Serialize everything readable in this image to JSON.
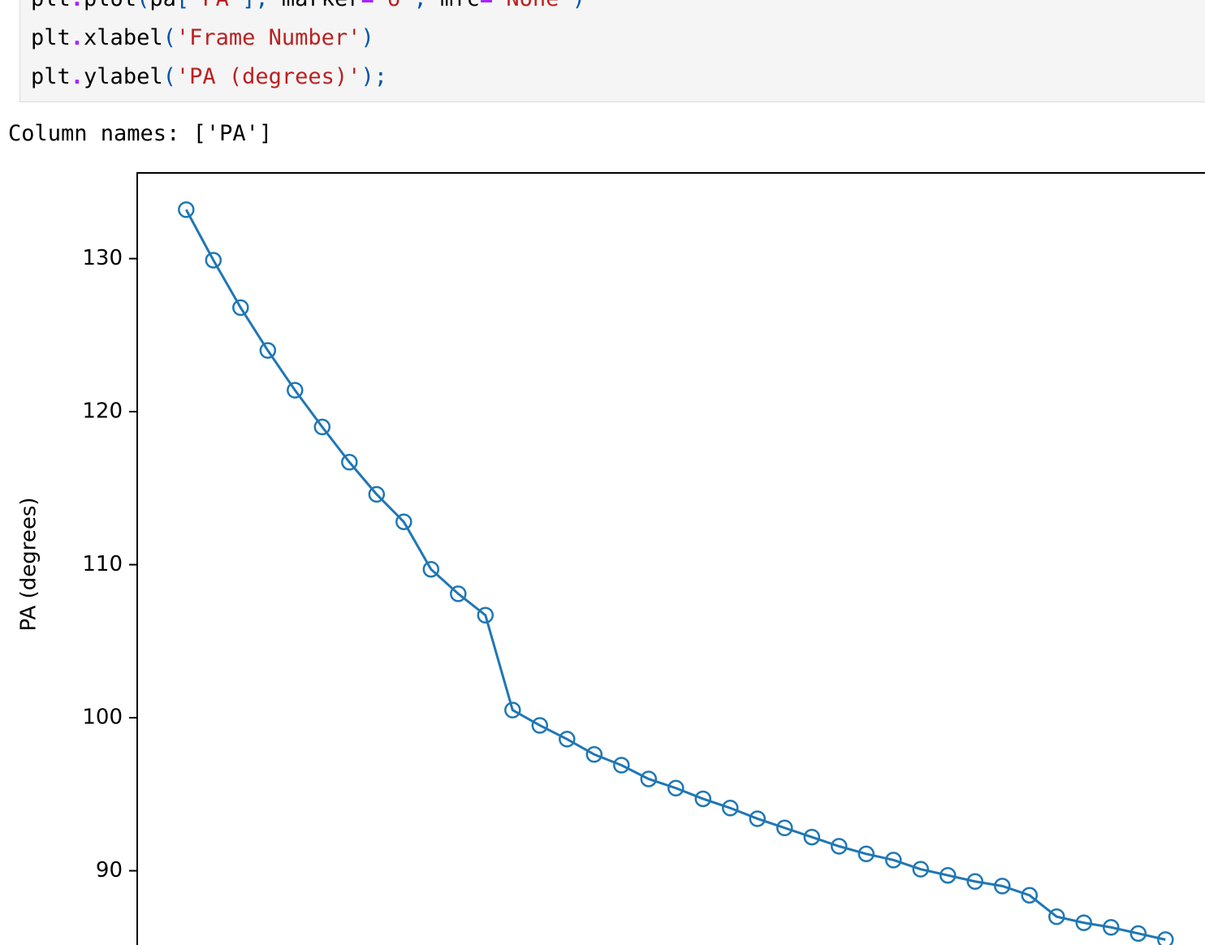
{
  "code": {
    "lines": [
      [
        {
          "text": "plt",
          "color": "#000000"
        },
        {
          "text": ".",
          "color": "#aa22ff"
        },
        {
          "text": "plot",
          "color": "#000000"
        },
        {
          "text": "(",
          "color": "#0055aa"
        },
        {
          "text": "pa",
          "color": "#000000"
        },
        {
          "text": "[",
          "color": "#0055aa"
        },
        {
          "text": "'PA'",
          "color": "#ba2121"
        },
        {
          "text": "],",
          "color": "#0055aa"
        },
        {
          "text": " marker",
          "color": "#000000"
        },
        {
          "text": "=",
          "color": "#aa22ff"
        },
        {
          "text": "'o'",
          "color": "#ba2121"
        },
        {
          "text": ",",
          "color": "#0055aa"
        },
        {
          "text": " mfc",
          "color": "#000000"
        },
        {
          "text": "=",
          "color": "#aa22ff"
        },
        {
          "text": "'None'",
          "color": "#ba2121"
        },
        {
          "text": ")",
          "color": "#0055aa"
        }
      ],
      [
        {
          "text": "plt",
          "color": "#000000"
        },
        {
          "text": ".",
          "color": "#aa22ff"
        },
        {
          "text": "xlabel",
          "color": "#000000"
        },
        {
          "text": "(",
          "color": "#0055aa"
        },
        {
          "text": "'Frame Number'",
          "color": "#ba2121"
        },
        {
          "text": ")",
          "color": "#0055aa"
        }
      ],
      [
        {
          "text": "plt",
          "color": "#000000"
        },
        {
          "text": ".",
          "color": "#aa22ff"
        },
        {
          "text": "ylabel",
          "color": "#000000"
        },
        {
          "text": "(",
          "color": "#0055aa"
        },
        {
          "text": "'PA (degrees)'",
          "color": "#ba2121"
        },
        {
          "text": ");",
          "color": "#0055aa"
        }
      ]
    ]
  },
  "output": {
    "text": "Column names: ['PA']"
  },
  "chart_data": {
    "type": "line",
    "y_label": "PA (degrees)",
    "x": [
      0,
      1,
      2,
      3,
      4,
      5,
      6,
      7,
      8,
      9,
      10,
      11,
      12,
      13,
      14,
      15,
      16,
      17,
      18,
      19,
      20,
      21,
      22,
      23,
      24,
      25,
      26,
      27,
      28,
      29,
      30,
      31,
      32,
      33,
      34,
      35,
      36
    ],
    "series": [
      {
        "name": "PA",
        "color": "#1f77b4",
        "marker": "o",
        "values": [
          133.2,
          129.9,
          126.8,
          124.0,
          121.4,
          119.0,
          116.7,
          114.6,
          112.8,
          109.7,
          108.1,
          106.7,
          100.5,
          99.5,
          98.6,
          97.6,
          96.9,
          96.0,
          95.4,
          94.7,
          94.1,
          93.4,
          92.8,
          92.2,
          91.6,
          91.1,
          90.7,
          90.1,
          89.7,
          89.3,
          89.0,
          88.4,
          87.0,
          86.6,
          86.3,
          85.9,
          85.5
        ]
      }
    ],
    "xlim": [
      -1.8,
      37.8
    ],
    "ylim": [
      83.1,
      135.6
    ],
    "yticks": [
      90,
      100,
      110,
      120,
      130
    ],
    "grid": false
  }
}
